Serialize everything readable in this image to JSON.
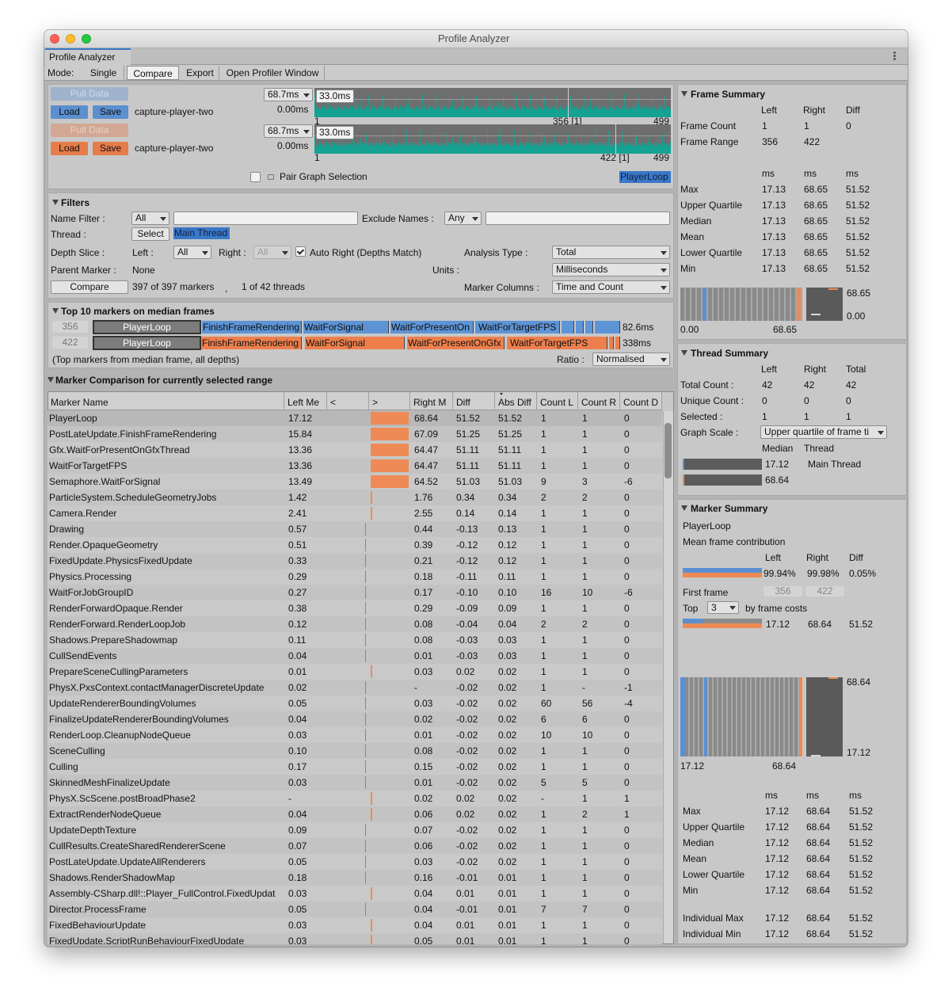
{
  "window": {
    "title": "Profile Analyzer",
    "tab": "Profile Analyzer",
    "mode_label": "Mode:",
    "modes": [
      "Single",
      "Compare",
      "Export",
      "Open Profiler Window"
    ]
  },
  "data_sources": [
    {
      "pull": "Pull Data",
      "load": "Load",
      "save": "Save",
      "file": "capture-player-two",
      "max": "68.7ms",
      "cap": "33.0ms",
      "min": "0.00ms",
      "first": "1",
      "selection": "356 [1]",
      "last": "499"
    },
    {
      "pull": "Pull Data",
      "load": "Load",
      "save": "Save",
      "file": "capture-player-two",
      "max": "68.7ms",
      "cap": "33.0ms",
      "min": "0.00ms",
      "first": "1",
      "selection": "422 [1]",
      "last": "499"
    }
  ],
  "pair_selection": "Pair Graph Selection",
  "selected_marker": "PlayerLoop",
  "filters": {
    "title": "Filters",
    "name_filter_label": "Name Filter :",
    "name_filter": "All",
    "exclude_label": "Exclude Names :",
    "exclude": "Any",
    "thread_label": "Thread :",
    "select": "Select",
    "thread": "Main Thread",
    "depth_label": "Depth Slice :",
    "left_label": "Left :",
    "left": "All",
    "right_label": "Right :",
    "right": "All",
    "auto_right": "Auto Right (Depths Match)",
    "analysis_label": "Analysis Type :",
    "analysis": "Total",
    "parent_label": "Parent Marker :",
    "parent": "None",
    "units_label": "Units :",
    "units": "Milliseconds",
    "compare": "Compare",
    "markers_count": "397 of 397 markers",
    "separator": ",",
    "threads_count": "1 of 42 threads",
    "columns_label": "Marker Columns :",
    "columns": "Time and Count"
  },
  "top_markers": {
    "title": "Top 10 markers on median frames",
    "rows": [
      {
        "frame": "356",
        "markers": [
          "PlayerLoop",
          "FinishFrameRendering",
          "WaitForSignal",
          "WaitForPresentOn",
          "WaitForTargetFPS"
        ],
        "total": "82.6ms"
      },
      {
        "frame": "422",
        "markers": [
          "PlayerLoop",
          "FinishFrameRendering",
          "WaitForSignal",
          "WaitForPresentOnGfx",
          "WaitForTargetFPS"
        ],
        "total": "338ms"
      }
    ],
    "note": "(Top markers from median frame, all depths)",
    "ratio_label": "Ratio :",
    "ratio": "Normalised"
  },
  "comparison": {
    "title": "Marker Comparison for currently selected range",
    "columns": [
      "Marker Name",
      "Left Me",
      "<",
      ">",
      "Right M",
      "Diff",
      "Abs Diff",
      "Count L",
      "Count R",
      "Count D"
    ],
    "rows": [
      [
        "PlayerLoop",
        "17.12",
        "68.64",
        "51.52",
        "51.52",
        "1",
        "1",
        "0"
      ],
      [
        "PostLateUpdate.FinishFrameRendering",
        "15.84",
        "67.09",
        "51.25",
        "51.25",
        "1",
        "1",
        "0"
      ],
      [
        "Gfx.WaitForPresentOnGfxThread",
        "13.36",
        "64.47",
        "51.11",
        "51.11",
        "1",
        "1",
        "0"
      ],
      [
        "WaitForTargetFPS",
        "13.36",
        "64.47",
        "51.11",
        "51.11",
        "1",
        "1",
        "0"
      ],
      [
        "Semaphore.WaitForSignal",
        "13.49",
        "64.52",
        "51.03",
        "51.03",
        "9",
        "3",
        "-6"
      ],
      [
        "ParticleSystem.ScheduleGeometryJobs",
        "1.42",
        "1.76",
        "0.34",
        "0.34",
        "2",
        "2",
        "0"
      ],
      [
        "Camera.Render",
        "2.41",
        "2.55",
        "0.14",
        "0.14",
        "1",
        "1",
        "0"
      ],
      [
        "Drawing",
        "0.57",
        "0.44",
        "-0.13",
        "0.13",
        "1",
        "1",
        "0"
      ],
      [
        "Render.OpaqueGeometry",
        "0.51",
        "0.39",
        "-0.12",
        "0.12",
        "1",
        "1",
        "0"
      ],
      [
        "FixedUpdate.PhysicsFixedUpdate",
        "0.33",
        "0.21",
        "-0.12",
        "0.12",
        "1",
        "1",
        "0"
      ],
      [
        "Physics.Processing",
        "0.29",
        "0.18",
        "-0.11",
        "0.11",
        "1",
        "1",
        "0"
      ],
      [
        "WaitForJobGroupID",
        "0.27",
        "0.17",
        "-0.10",
        "0.10",
        "16",
        "10",
        "-6"
      ],
      [
        "RenderForwardOpaque.Render",
        "0.38",
        "0.29",
        "-0.09",
        "0.09",
        "1",
        "1",
        "0"
      ],
      [
        "RenderForward.RenderLoopJob",
        "0.12",
        "0.08",
        "-0.04",
        "0.04",
        "2",
        "2",
        "0"
      ],
      [
        "Shadows.PrepareShadowmap",
        "0.11",
        "0.08",
        "-0.03",
        "0.03",
        "1",
        "1",
        "0"
      ],
      [
        "CullSendEvents",
        "0.04",
        "0.01",
        "-0.03",
        "0.03",
        "1",
        "1",
        "0"
      ],
      [
        "PrepareSceneCullingParameters",
        "0.01",
        "0.03",
        "0.02",
        "0.02",
        "1",
        "1",
        "0"
      ],
      [
        "PhysX.PxsContext.contactManagerDiscreteUpdate",
        "0.02",
        "-",
        "-0.02",
        "0.02",
        "1",
        "-",
        "-1"
      ],
      [
        "UpdateRendererBoundingVolumes",
        "0.05",
        "0.03",
        "-0.02",
        "0.02",
        "60",
        "56",
        "-4"
      ],
      [
        "FinalizeUpdateRendererBoundingVolumes",
        "0.04",
        "0.02",
        "-0.02",
        "0.02",
        "6",
        "6",
        "0"
      ],
      [
        "RenderLoop.CleanupNodeQueue",
        "0.03",
        "0.01",
        "-0.02",
        "0.02",
        "10",
        "10",
        "0"
      ],
      [
        "SceneCulling",
        "0.10",
        "0.08",
        "-0.02",
        "0.02",
        "1",
        "1",
        "0"
      ],
      [
        "Culling",
        "0.17",
        "0.15",
        "-0.02",
        "0.02",
        "1",
        "1",
        "0"
      ],
      [
        "SkinnedMeshFinalizeUpdate",
        "0.03",
        "0.01",
        "-0.02",
        "0.02",
        "5",
        "5",
        "0"
      ],
      [
        "PhysX.ScScene.postBroadPhase2",
        "-",
        "0.02",
        "0.02",
        "0.02",
        "-",
        "1",
        "1"
      ],
      [
        "ExtractRenderNodeQueue",
        "0.04",
        "0.06",
        "0.02",
        "0.02",
        "1",
        "2",
        "1"
      ],
      [
        "UpdateDepthTexture",
        "0.09",
        "0.07",
        "-0.02",
        "0.02",
        "1",
        "1",
        "0"
      ],
      [
        "CullResults.CreateSharedRendererScene",
        "0.07",
        "0.06",
        "-0.02",
        "0.02",
        "1",
        "1",
        "0"
      ],
      [
        "PostLateUpdate.UpdateAllRenderers",
        "0.05",
        "0.03",
        "-0.02",
        "0.02",
        "1",
        "1",
        "0"
      ],
      [
        "Shadows.RenderShadowMap",
        "0.18",
        "0.16",
        "-0.01",
        "0.01",
        "1",
        "1",
        "0"
      ],
      [
        "Assembly-CSharp.dll!::Player_FullControl.FixedUpdat",
        "0.03",
        "0.04",
        "0.01",
        "0.01",
        "1",
        "1",
        "0"
      ],
      [
        "Director.ProcessFrame",
        "0.05",
        "0.04",
        "-0.01",
        "0.01",
        "7",
        "7",
        "0"
      ],
      [
        "FixedBehaviourUpdate",
        "0.03",
        "0.04",
        "0.01",
        "0.01",
        "1",
        "1",
        "0"
      ],
      [
        "FixedUpdate.ScriptRunBehaviourFixedUpdate",
        "0.03",
        "0.05",
        "0.01",
        "0.01",
        "1",
        "1",
        "0"
      ]
    ]
  },
  "frame_summary": {
    "title": "Frame Summary",
    "columns": [
      "Left",
      "Right",
      "Diff"
    ],
    "rows": [
      [
        "Frame Count",
        "1",
        "1",
        "0"
      ],
      [
        "Frame Range",
        "356",
        "422"
      ]
    ],
    "units": [
      "ms",
      "ms",
      "ms"
    ],
    "stats": [
      [
        "Max",
        "17.13",
        "68.65",
        "51.52"
      ],
      [
        "Upper Quartile",
        "17.13",
        "68.65",
        "51.52"
      ],
      [
        "Median",
        "17.13",
        "68.65",
        "51.52"
      ],
      [
        "Mean",
        "17.13",
        "68.65",
        "51.52"
      ],
      [
        "Lower Quartile",
        "17.13",
        "68.65",
        "51.52"
      ],
      [
        "Min",
        "17.13",
        "68.65",
        "51.52"
      ]
    ],
    "graph_labels": [
      "68.65",
      "0.00",
      "0.00",
      "68.65"
    ]
  },
  "thread_summary": {
    "title": "Thread Summary",
    "columns": [
      "Left",
      "Right",
      "Total"
    ],
    "rows": [
      [
        "Total Count :",
        "42",
        "42",
        "42"
      ],
      [
        "Unique Count :",
        "0",
        "0",
        "0"
      ],
      [
        "Selected :",
        "1",
        "1",
        "1"
      ]
    ],
    "graph_scale_label": "Graph Scale :",
    "graph_scale": "Upper quartile of frame ti",
    "median_label": "Median",
    "thread_label": "Thread",
    "threads": [
      {
        "median": "17.12",
        "name": "Main Thread"
      },
      {
        "median": "68.64"
      }
    ]
  },
  "marker_summary": {
    "title": "Marker Summary",
    "marker": "PlayerLoop",
    "contribution_label": "Mean frame contribution",
    "columns": [
      "Left",
      "Right",
      "Diff"
    ],
    "contribution": [
      "99.94%",
      "99.98%",
      "0.05%"
    ],
    "first_frame_label": "First frame",
    "first_frame": [
      "356",
      "422"
    ],
    "top_label": "Top",
    "top": "3",
    "top_suffix": "by frame costs",
    "top_values": [
      "17.12",
      "68.64",
      "51.52"
    ],
    "graph_labels": [
      "68.64",
      "17.12",
      "17.12",
      "68.64"
    ],
    "units": [
      "ms",
      "ms",
      "ms"
    ],
    "stats": [
      [
        "Max",
        "17.12",
        "68.64",
        "51.52"
      ],
      [
        "Upper Quartile",
        "17.12",
        "68.64",
        "51.52"
      ],
      [
        "Median",
        "17.12",
        "68.64",
        "51.52"
      ],
      [
        "Mean",
        "17.12",
        "68.64",
        "51.52"
      ],
      [
        "Lower Quartile",
        "17.12",
        "68.64",
        "51.52"
      ],
      [
        "Min",
        "17.12",
        "68.64",
        "51.52"
      ]
    ],
    "individual": [
      [
        "Individual Max",
        "17.12",
        "68.64",
        "51.52"
      ],
      [
        "Individual Min",
        "17.12",
        "68.64",
        "51.52"
      ]
    ]
  }
}
